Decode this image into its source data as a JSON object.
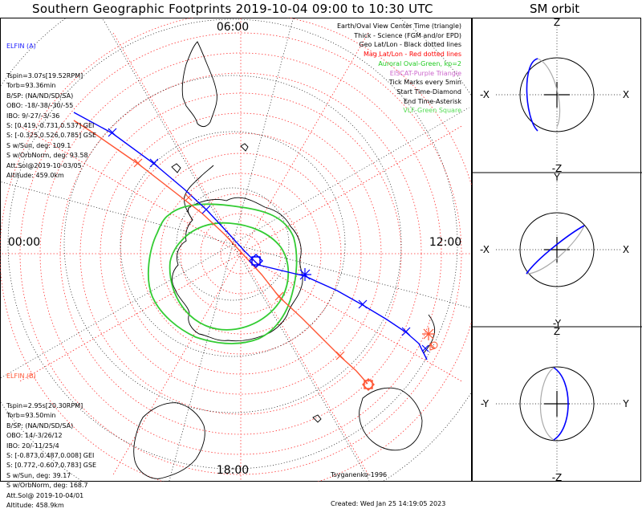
{
  "title": "Southern Geographic Footprints 2019-10-04 09:00 to 10:30 UTC",
  "sm_title": "SM orbit",
  "clock_labels": {
    "top": "06:00",
    "left": "00:00",
    "right": "12:00",
    "bottom": "18:00"
  },
  "elfin_a": {
    "header": "ELFIN (A)",
    "lines": [
      "Tspin=3.07s[19.52RPM]",
      "Torb=93.36min",
      "B/SP: (NA/ND/SD/SA)",
      "OBO: -18/-38/-30/-55",
      "IBO: 9/-27/-3/-36",
      "S: [0.419,-0.731,0.537] GEI",
      "S: [-0.325,0.526,0.785] GSE",
      "S w/Sun, deg: 109.1",
      "S w/OrbNorm, deg: 93.58",
      "Att.Sol@2019-10-03/05",
      "Altitude: 459.0km"
    ],
    "color": "#0000ff"
  },
  "elfin_b": {
    "header": "ELFIN (B)",
    "lines": [
      "Tspin=2.95s[20.30RPM]",
      "Torb=93.50min",
      "B/SP: (NA/ND/SD/SA)",
      "OBO: 14/-3/26/12",
      "IBO: 20/-11/25/4",
      "S: [-0.873,0.487,0.008] GEI",
      "S: [0.772,-0.607,0.783] GSE",
      "S w/Sun, deg: 39.17",
      "S w/OrbNorm, deg: 168.7",
      "Att.Sol@ 2019-10-04/01",
      "Altitude: 458.9km"
    ],
    "color": "#ff5533"
  },
  "legend": [
    {
      "text": "Earth/Oval View Center Time (triangle)",
      "color": "#000000"
    },
    {
      "text": "Thick - Science (FGM and/or EPD)",
      "color": "#000000"
    },
    {
      "text": "Geo Lat/Lon - Black dotted lines",
      "color": "#000000"
    },
    {
      "text": "Mag Lat/Lon - Red dotted lines",
      "color": "#ff0000"
    },
    {
      "text": "Auroral Oval-Green, kp=2",
      "color": "#22cc22"
    },
    {
      "text": "EISCAT-Purple Triangle",
      "color": "#cc66cc"
    },
    {
      "text": "Tick Marks every 5min",
      "color": "#000000"
    },
    {
      "text": "Start Time-Diamond",
      "color": "#000000"
    },
    {
      "text": "End Time-Asterisk",
      "color": "#000000"
    },
    {
      "text": "VLF-Green Square",
      "color": "#55dd55"
    }
  ],
  "footer": {
    "model": "Tsyganenko-1996",
    "created": "Created: Wed Jan 25 14:19:05 2023"
  },
  "sm_panels": [
    {
      "top": "Z",
      "bottom": "-Z",
      "left": "-X",
      "right": "X"
    },
    {
      "top": "Y",
      "bottom": "-Y",
      "left": "-X",
      "right": "X"
    },
    {
      "top": "Z",
      "bottom": "-Z",
      "left": "-Y",
      "right": "Y"
    }
  ],
  "colors": {
    "elfin_a": "#0000ff",
    "elfin_b": "#ff5533",
    "oval": "#33cc33",
    "mag_grid": "#ff3333",
    "geo_grid": "#000000"
  }
}
